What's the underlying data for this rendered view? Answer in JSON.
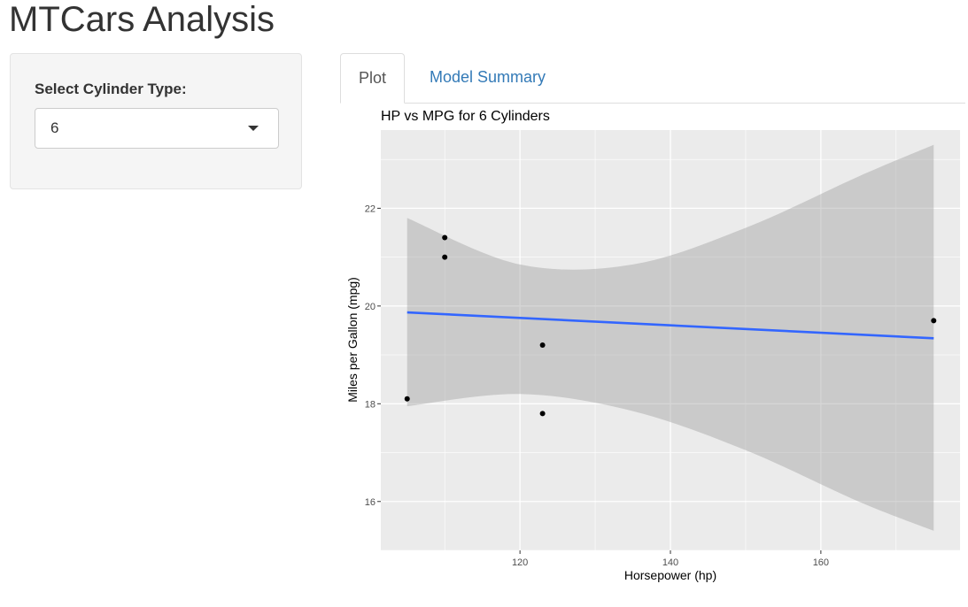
{
  "app": {
    "title": "MTCars Analysis"
  },
  "sidebar": {
    "label": "Select Cylinder Type:",
    "select": {
      "value": "6",
      "caret_icon": "caret-down-icon"
    }
  },
  "tabs": [
    {
      "label": "Plot",
      "active": true
    },
    {
      "label": "Model Summary",
      "active": false
    }
  ],
  "colors": {
    "panel": "#ebebeb",
    "fit_line": "#3366ff",
    "band": "#999999",
    "point": "#000000",
    "link": "#337ab7"
  },
  "chart_data": {
    "type": "scatter",
    "title": "HP vs MPG for 6 Cylinders",
    "xlabel": "Horsepower (hp)",
    "ylabel": "Miles per Gallon (mpg)",
    "xlim": [
      101.5,
      178.5
    ],
    "ylim": [
      15.0,
      23.6
    ],
    "x_ticks": [
      120,
      140,
      160
    ],
    "y_ticks": [
      16,
      18,
      20,
      22
    ],
    "points": [
      {
        "x": 105,
        "y": 18.1
      },
      {
        "x": 110,
        "y": 21.0
      },
      {
        "x": 110,
        "y": 21.4
      },
      {
        "x": 123,
        "y": 19.2
      },
      {
        "x": 123,
        "y": 17.8
      },
      {
        "x": 175,
        "y": 19.7
      }
    ],
    "fit_line": {
      "method": "lm",
      "x": [
        105,
        175
      ],
      "y": [
        19.87,
        19.34
      ]
    },
    "confidence_band": {
      "x": [
        105,
        120,
        135,
        150,
        165,
        175
      ],
      "upper": [
        21.8,
        20.85,
        20.85,
        21.6,
        22.65,
        23.3
      ],
      "lower": [
        17.95,
        18.2,
        17.85,
        17.05,
        16.0,
        15.4
      ]
    },
    "grid": true,
    "legend": "none"
  }
}
